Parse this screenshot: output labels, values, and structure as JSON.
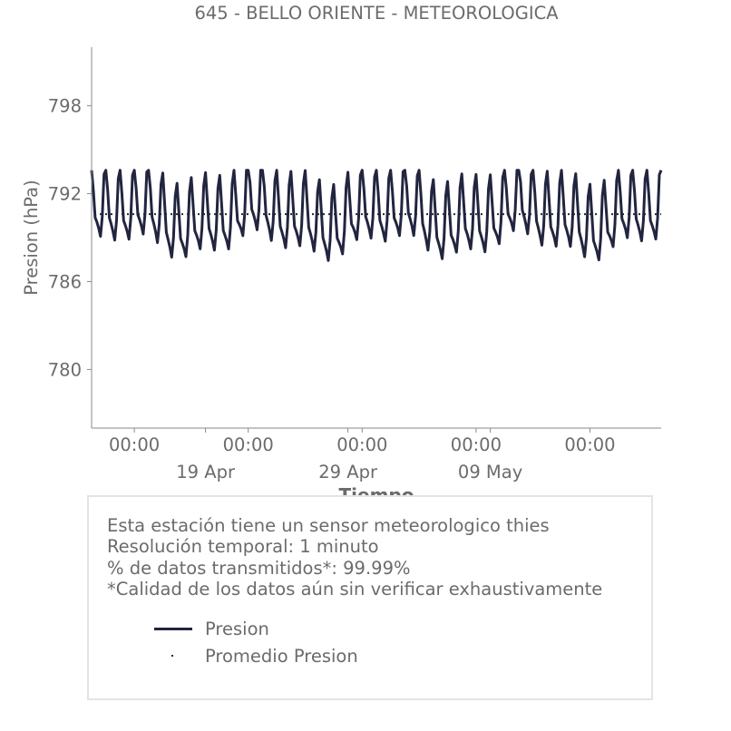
{
  "chart_data": {
    "type": "line",
    "title": "645 - BELLO ORIENTE - METEOROLOGICA",
    "xlabel": "Tiempo",
    "ylabel": "Presion (hPa)",
    "ylim": [
      776,
      802
    ],
    "yticks": [
      780,
      786,
      792,
      798
    ],
    "xlim_days": [
      0,
      40
    ],
    "x_ticks": [
      {
        "label": "00:00",
        "date": "2023-04-14"
      },
      {
        "label": "00:00",
        "date": "2023-04-22"
      },
      {
        "label": "00:00",
        "date": "2023-04-30"
      },
      {
        "label": "00:00",
        "date": "2023-05-08"
      },
      {
        "label": "00:00",
        "date": "2023-05-16"
      }
    ],
    "x_date_labels": [
      {
        "label": "19 Apr",
        "date": "2023-04-19"
      },
      {
        "label": "29 Apr",
        "date": "2023-04-29"
      },
      {
        "label": "09 May",
        "date": "2023-05-09"
      }
    ],
    "x_start": "2023-04-11",
    "x_end": "2023-05-21",
    "series": [
      {
        "name": "Presion",
        "style": "solid",
        "color": "#22253f",
        "x_start": "2023-04-11",
        "x_step_days": 0.125,
        "mean": 790.6,
        "diurnal_amplitude": 2.3,
        "semidiurnal_amplitude": 0.9,
        "y_min": 787.2,
        "y_max": 793.6
      },
      {
        "name": "Promedio Presion",
        "style": "dotted",
        "color": "#22253f",
        "value": 790.6
      }
    ],
    "grid": false,
    "legend": "bottom-left"
  },
  "info": {
    "lines": [
      "Esta estación tiene un sensor meteorologico thies",
      "Resolución temporal: 1 minuto",
      "% de datos transmitidos*: 99.99%",
      "*Calidad de los datos aún sin verificar exhaustivamente"
    ]
  },
  "legend": {
    "items": [
      {
        "label": "Presion"
      },
      {
        "label": "Promedio Presion"
      }
    ]
  }
}
